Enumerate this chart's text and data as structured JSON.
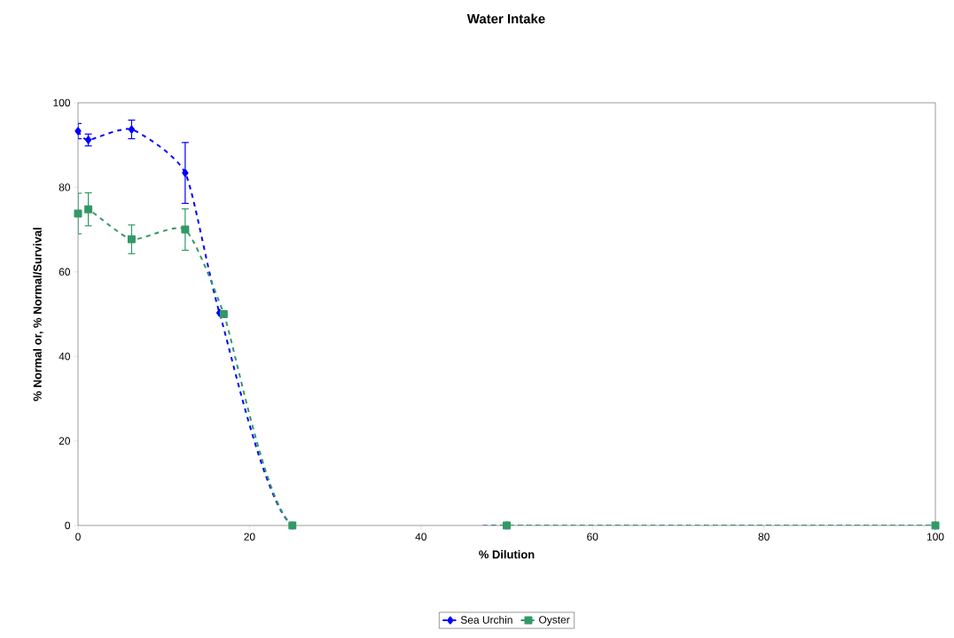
{
  "chart_data": {
    "type": "line",
    "title": "Water Intake",
    "xlabel": "% Dilution",
    "ylabel": "% Normal or, % Normal/Survival",
    "xlim": [
      0,
      100
    ],
    "ylim": [
      0,
      100
    ],
    "xticks": [
      0,
      20,
      40,
      60,
      80,
      100
    ],
    "yticks": [
      0,
      20,
      40,
      60,
      80,
      100
    ],
    "grid": false,
    "legend": "bottom",
    "line_style": "dashed",
    "series": [
      {
        "name": "Sea Urchin",
        "color": "#0000ff",
        "marker": "diamond",
        "x": [
          0,
          1.2,
          6.25,
          12.5,
          16.5,
          25,
          50,
          100
        ],
        "values": [
          93.3,
          91.2,
          93.7,
          83.4,
          50.3,
          0,
          0,
          0
        ],
        "errors": [
          1.8,
          1.4,
          2.2,
          7.2,
          null,
          null,
          null,
          null
        ]
      },
      {
        "name": "Oyster",
        "color": "#339966",
        "marker": "square",
        "x": [
          0,
          1.2,
          6.25,
          12.5,
          17,
          25,
          50,
          100
        ],
        "values": [
          73.8,
          74.8,
          67.7,
          70.0,
          50,
          0,
          0,
          0
        ],
        "errors": [
          4.8,
          3.9,
          3.4,
          4.9,
          null,
          null,
          null,
          null
        ]
      }
    ]
  }
}
